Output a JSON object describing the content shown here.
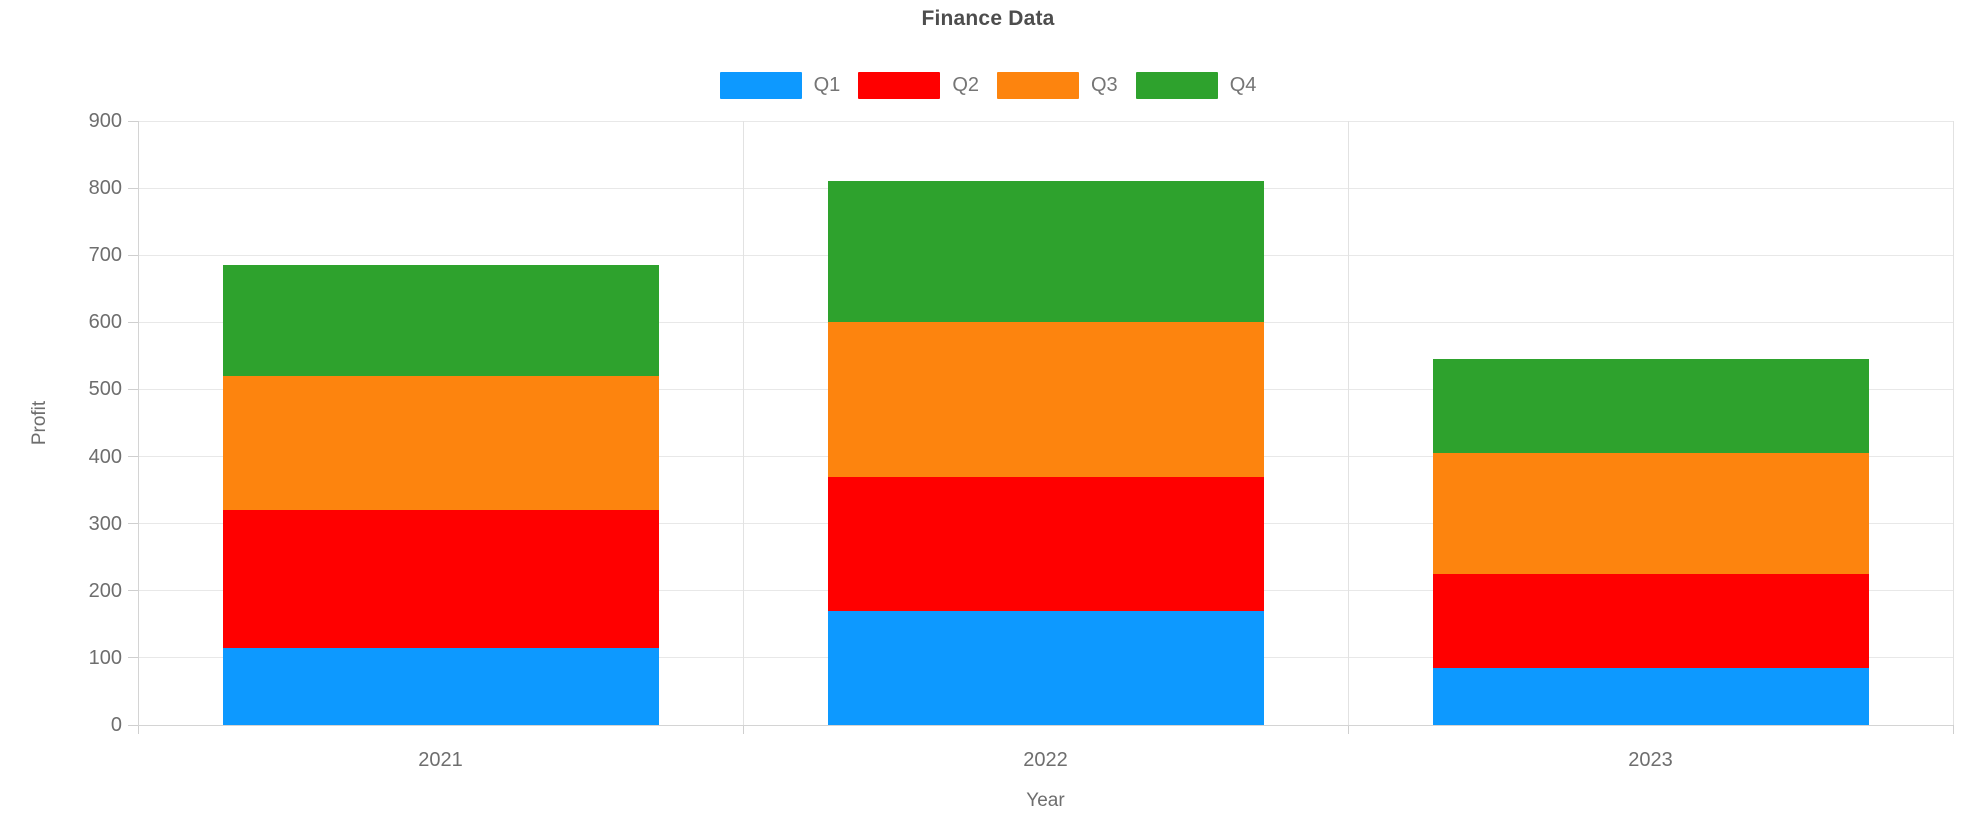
{
  "chart": {
    "title": "Finance Data",
    "y_axis_title": "Profit",
    "x_axis_title": "Year"
  },
  "chart_data": {
    "type": "bar",
    "stacked": true,
    "title": "Finance Data",
    "categories": [
      "2021",
      "2022",
      "2023"
    ],
    "series": [
      {
        "name": "Q1",
        "color": "#0d99ff",
        "values": [
          115,
          170,
          85
        ]
      },
      {
        "name": "Q2",
        "color": "#ff0000",
        "values": [
          205,
          200,
          140
        ]
      },
      {
        "name": "Q3",
        "color": "#fd840e",
        "values": [
          200,
          230,
          180
        ]
      },
      {
        "name": "Q4",
        "color": "#2ea22d",
        "values": [
          165,
          210,
          140
        ]
      }
    ],
    "stack_totals": [
      685,
      810,
      545
    ],
    "xlabel": "Year",
    "ylabel": "Profit",
    "ylim": [
      0,
      900
    ],
    "ytick_step": 100,
    "ytick_labels": [
      "0",
      "100",
      "200",
      "300",
      "400",
      "500",
      "600",
      "700",
      "800",
      "900"
    ],
    "grid": true,
    "legend_position": "top-center",
    "colors": {
      "grid_line": "#e8e8e8",
      "axis_line": "#d4d4d4",
      "tick_label": "#6e6e6e",
      "title": "#4d4d4d"
    }
  }
}
